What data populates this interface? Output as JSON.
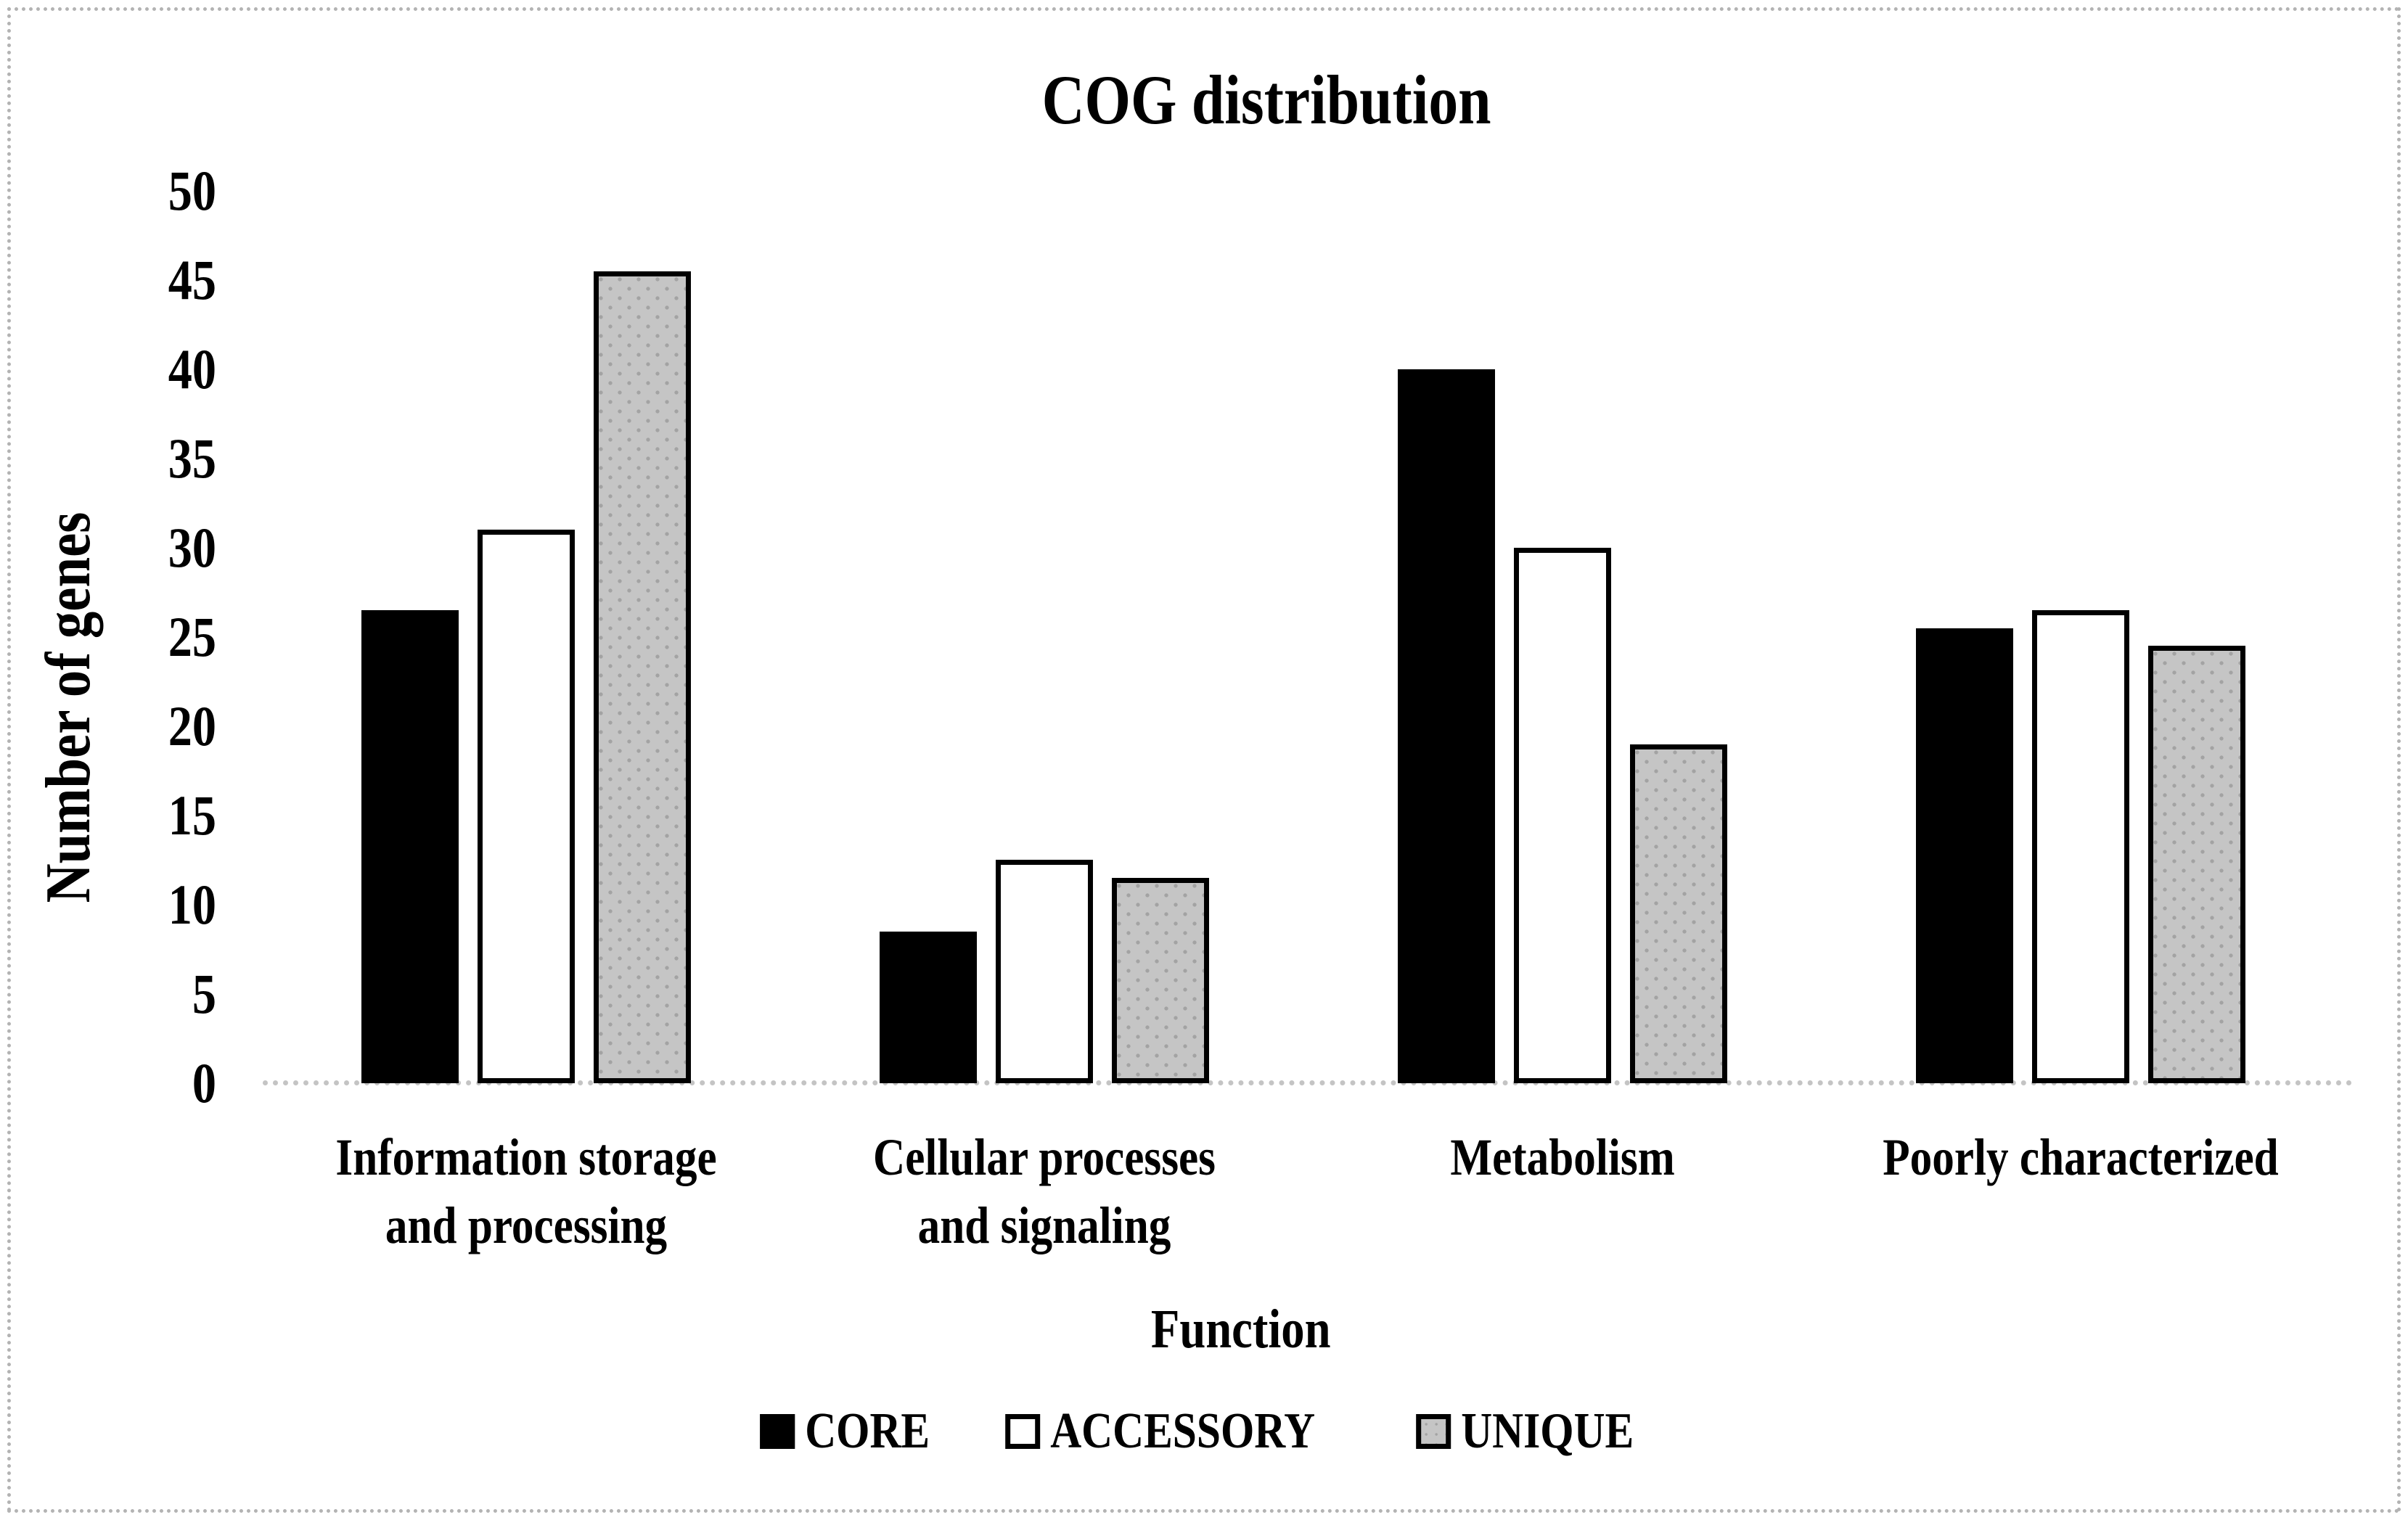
{
  "figure": {
    "background": "#ffffff",
    "frame_border_color": "#b3b3b3"
  },
  "chart_data": {
    "type": "bar",
    "title": "COG distribution",
    "xlabel": "Function",
    "ylabel": "Number of genes",
    "categories": [
      "Information storage and processing",
      "Cellular processes and signaling",
      "Metabolism",
      "Poorly characterized"
    ],
    "category_display_lines": [
      [
        "Information storage",
        "and processing"
      ],
      [
        "Cellular processes",
        "and signaling"
      ],
      [
        "Metabolism"
      ],
      [
        "Poorly characterized"
      ]
    ],
    "series": [
      {
        "name": "CORE",
        "values": [
          26.5,
          8.5,
          40,
          25.5
        ],
        "fill": "#000000",
        "pattern": "solid"
      },
      {
        "name": "ACCESSORY",
        "values": [
          31,
          12.5,
          30,
          26.5
        ],
        "fill": "#ffffff",
        "pattern": "solid"
      },
      {
        "name": "UNIQUE",
        "values": [
          45.5,
          11.5,
          19,
          24.5
        ],
        "fill": "#c5c5c5",
        "pattern": "dots",
        "dot_color": "#a3a3a3"
      }
    ],
    "ylim": [
      0,
      50
    ],
    "yticks": [
      0,
      5,
      10,
      15,
      20,
      25,
      30,
      35,
      40,
      45,
      50
    ],
    "grid": false,
    "legend_position": "bottom",
    "bar_outline_color": "#000000",
    "baseline_color": "#c4c4c4"
  }
}
